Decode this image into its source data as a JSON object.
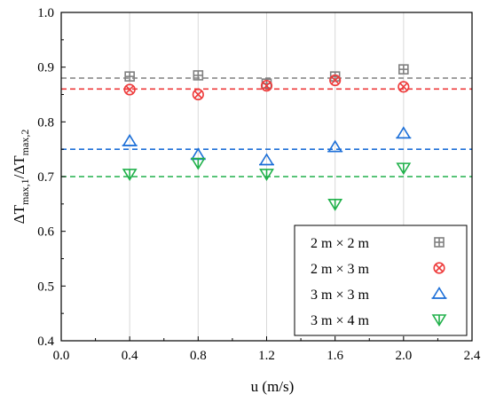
{
  "chart_data": {
    "type": "scatter",
    "xlabel": "u (m/s)",
    "ylabel": {
      "prefix": "ΔT",
      "sub1": "max,1",
      "mid": "/ΔT",
      "sub2": "max,2"
    },
    "xlim": [
      0.0,
      2.4
    ],
    "ylim": [
      0.4,
      1.0
    ],
    "xticks": [
      "0.0",
      "0.4",
      "0.8",
      "1.2",
      "1.6",
      "2.0",
      "2.4"
    ],
    "yticks": [
      "0.4",
      "0.5",
      "0.6",
      "0.7",
      "0.8",
      "0.9",
      "1.0"
    ],
    "grid": "vertical",
    "legend_position": "bottom-right",
    "series": [
      {
        "name": "2 m × 2 m",
        "marker": "square-plus",
        "color": "#808080",
        "x": [
          0.4,
          0.8,
          1.2,
          1.6,
          2.0
        ],
        "y": [
          0.883,
          0.885,
          0.87,
          0.883,
          0.896
        ],
        "mean": 0.88
      },
      {
        "name": "2 m × 3 m",
        "marker": "circle-x",
        "color": "#ee3b3b",
        "x": [
          0.4,
          0.8,
          1.2,
          1.6,
          2.0
        ],
        "y": [
          0.859,
          0.85,
          0.866,
          0.876,
          0.864
        ],
        "mean": 0.86
      },
      {
        "name": "3 m × 3 m",
        "marker": "triangle-up",
        "color": "#1c6fd8",
        "x": [
          0.4,
          0.8,
          1.2,
          1.6,
          2.0
        ],
        "y": [
          0.765,
          0.74,
          0.73,
          0.754,
          0.779
        ],
        "mean": 0.75
      },
      {
        "name": "3 m × 4 m",
        "marker": "triangle-down",
        "color": "#21b14b",
        "x": [
          0.4,
          0.8,
          1.2,
          1.6,
          2.0
        ],
        "y": [
          0.705,
          0.725,
          0.705,
          0.65,
          0.716
        ],
        "mean": 0.7
      }
    ]
  }
}
